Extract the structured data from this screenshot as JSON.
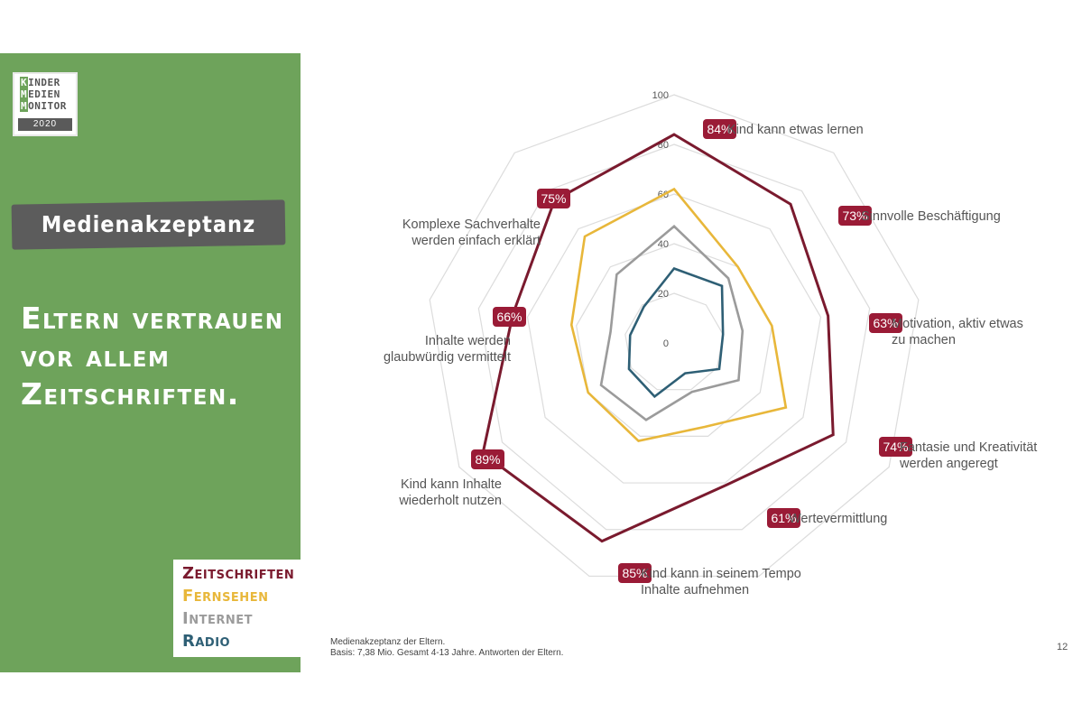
{
  "page": {
    "title": "Medienakzeptanz",
    "headline_lines": [
      "Eltern vertrauen",
      "vor allem",
      "Zeitschriften."
    ],
    "page_number": "12"
  },
  "logo": {
    "lines": [
      {
        "hl": "K",
        "rest": "INDER"
      },
      {
        "hl": "M",
        "rest": "EDIEN"
      },
      {
        "hl": "M",
        "rest": "ONITOR"
      }
    ],
    "year": "2020"
  },
  "legend": {
    "items": [
      {
        "label": "Zeitschriften",
        "color": "#7a1a2e"
      },
      {
        "label": "Fernsehen",
        "color": "#e8b73a"
      },
      {
        "label": "Internet",
        "color": "#9b9b9b"
      },
      {
        "label": "Radio",
        "color": "#2e5f75"
      }
    ]
  },
  "footnote": {
    "line1": "Medienakzeptanz der Eltern.",
    "line2": "Basis: 7,38 Mio. Gesamt 4-13 Jahre. Antworten der Eltern."
  },
  "chart_data": {
    "type": "radar",
    "ylim": [
      0,
      100
    ],
    "ticks": [
      "0",
      "20",
      "40",
      "60",
      "80",
      "100"
    ],
    "tick_values": [
      0,
      20,
      40,
      60,
      80,
      100
    ],
    "categories": [
      "Kind kann etwas lernen",
      "Sinnvolle Beschäftigung",
      "Motivation, aktiv etwas zu machen",
      "Fantasie und Kreativität werden angeregt",
      "Wertevermittlung",
      "Kind kann in seinem Tempo Inhalte aufnehmen",
      "Kind kann Inhalte wiederholt nutzen",
      "Inhalte werden glaubwürdig vermittelt",
      "Komplexe Sachverhalte werden einfach erklärt"
    ],
    "category_lines": [
      [
        "Kind kann etwas lernen"
      ],
      [
        "Sinnvolle Beschäftigung"
      ],
      [
        "Motivation, aktiv etwas",
        "zu machen"
      ],
      [
        "Fantasie und Kreativität",
        "werden angeregt"
      ],
      [
        "Wertevermittlung"
      ],
      [
        "Kind kann in seinem Tempo",
        "Inhalte aufnehmen"
      ],
      [
        "Kind kann Inhalte",
        "wiederholt nutzen"
      ],
      [
        "Inhalte werden",
        "glaubwürdig vermittelt"
      ],
      [
        "Komplexe Sachverhalte",
        "werden einfach erklärt"
      ]
    ],
    "badges": [
      "84%",
      "73%",
      "63%",
      "74%",
      "61%",
      "85%",
      "89%",
      "66%",
      "75%"
    ],
    "series": [
      {
        "name": "Zeitschriften",
        "color": "#7a1a2e",
        "values": [
          84,
          73,
          63,
          74,
          61,
          85,
          89,
          66,
          75
        ]
      },
      {
        "name": "Fernsehen",
        "color": "#e8b73a",
        "values": [
          62,
          40,
          40,
          52,
          36,
          42,
          40,
          42,
          56
        ]
      },
      {
        "name": "Internet",
        "color": "#9b9b9b",
        "values": [
          47,
          34,
          28,
          30,
          21,
          33,
          34,
          26,
          36
        ]
      },
      {
        "name": "Radio",
        "color": "#2e5f75",
        "values": [
          30,
          30,
          20,
          21,
          13,
          23,
          21,
          18,
          19
        ]
      }
    ],
    "grid": true,
    "badge_color": "#9a1b36"
  }
}
